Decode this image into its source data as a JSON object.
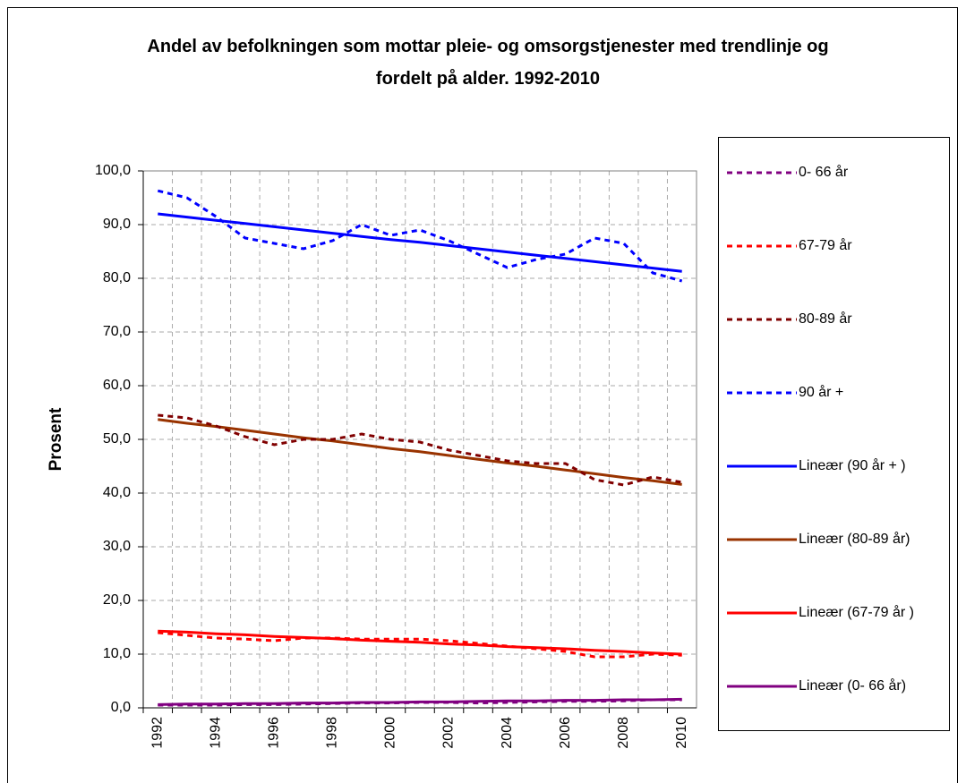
{
  "chart_data": {
    "type": "line",
    "title": "Andel av befolkningen som mottar pleie- og omsorgstjenester med trendlinje og fordelt på alder. 1992-2010",
    "ylabel": "Prosent",
    "categories": [
      "1992",
      null,
      "1994",
      null,
      "1996",
      null,
      "1998",
      null,
      "2000",
      null,
      "2002",
      null,
      "2004",
      null,
      "2006",
      null,
      "2008",
      null,
      "2010"
    ],
    "ylim": [
      0,
      100
    ],
    "yticks": [
      {
        "value": 0,
        "label": "0,0"
      },
      {
        "value": 10,
        "label": "10,0"
      },
      {
        "value": 20,
        "label": "20,0"
      },
      {
        "value": 30,
        "label": "30,0"
      },
      {
        "value": 40,
        "label": "40,0"
      },
      {
        "value": 50,
        "label": "50,0"
      },
      {
        "value": 60,
        "label": "60,0"
      },
      {
        "value": 70,
        "label": "70,0"
      },
      {
        "value": 80,
        "label": "80,0"
      },
      {
        "value": 90,
        "label": "90,0"
      },
      {
        "value": 100,
        "label": "100,0"
      }
    ],
    "grid": true,
    "legend": "right",
    "series": [
      {
        "name": "0- 66 år",
        "color": "#800080",
        "dashed": true,
        "values": [
          0.5,
          0.5,
          0.5,
          0.6,
          0.6,
          0.7,
          0.8,
          0.9,
          0.9,
          1.0,
          1.0,
          0.9,
          1.0,
          1.1,
          1.2,
          1.2,
          1.3,
          1.5,
          1.5
        ]
      },
      {
        "name": "67-79 år",
        "color": "#ff0000",
        "dashed": true,
        "values": [
          14,
          13.5,
          13,
          12.8,
          12.5,
          13,
          13,
          12.8,
          12.8,
          12.8,
          12.5,
          12,
          11.5,
          11,
          10.5,
          9.5,
          9.5,
          10,
          9.8
        ]
      },
      {
        "name": "80-89 år",
        "color": "#800000",
        "dashed": true,
        "values": [
          54.5,
          54,
          52.5,
          50.5,
          49,
          50,
          50,
          51,
          50,
          49.5,
          48,
          47,
          46,
          45.5,
          45.5,
          42.5,
          41.5,
          43,
          42
        ]
      },
      {
        "name": "90 år +",
        "color": "#0000ff",
        "dashed": true,
        "values": [
          96.3,
          95,
          91.5,
          87.5,
          86.5,
          85.5,
          87,
          90,
          88,
          89,
          87,
          84.5,
          82,
          83.5,
          84.5,
          87.5,
          86.5,
          81,
          79.5
        ]
      },
      {
        "name": "Lineær (90 år + )",
        "color": "#0000ff",
        "dashed": false,
        "values": [
          92.0,
          91.4,
          90.8,
          90.2,
          89.6,
          89.0,
          88.4,
          87.8,
          87.2,
          86.7,
          86.1,
          85.5,
          84.9,
          84.3,
          83.7,
          83.1,
          82.5,
          81.9,
          81.3
        ]
      },
      {
        "name": "Lineær (80-89 år)",
        "color": "#993300",
        "dashed": false,
        "values": [
          53.7,
          53.0,
          52.4,
          51.7,
          51.0,
          50.3,
          49.7,
          49.0,
          48.3,
          47.7,
          47.0,
          46.3,
          45.6,
          45.0,
          44.3,
          43.6,
          42.9,
          42.3,
          41.6
        ]
      },
      {
        "name": "Lineær (67-79 år )",
        "color": "#ff0000",
        "dashed": false,
        "values": [
          14.3,
          14.1,
          13.8,
          13.6,
          13.3,
          13.1,
          12.9,
          12.6,
          12.4,
          12.2,
          11.9,
          11.7,
          11.4,
          11.2,
          11.0,
          10.7,
          10.5,
          10.2,
          10.0
        ]
      },
      {
        "name": "Lineær (0- 66 år)",
        "color": "#800080",
        "dashed": false,
        "values": [
          0.6,
          0.7,
          0.7,
          0.8,
          0.8,
          0.9,
          0.9,
          1.0,
          1.0,
          1.1,
          1.1,
          1.2,
          1.3,
          1.3,
          1.4,
          1.4,
          1.5,
          1.5,
          1.6
        ]
      }
    ]
  }
}
